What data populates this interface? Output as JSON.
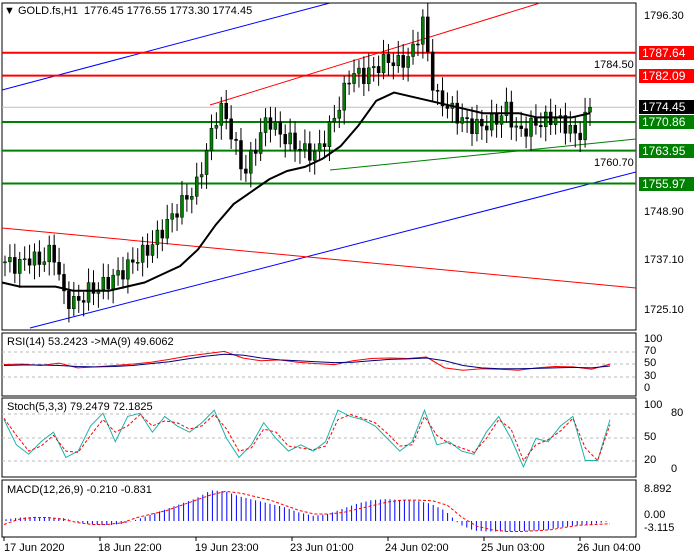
{
  "header": {
    "symbol": "GOLD.fs,H1",
    "ohlc": "1776.45 1776.55 1773.30 1774.45"
  },
  "price_scale": [
    "1796.30",
    "1784.50",
    "1760.70",
    "1748.90",
    "1737.10",
    "1725.10"
  ],
  "levels": [
    {
      "label": "1787.64",
      "price": 1787.64,
      "color": "#ff0000"
    },
    {
      "label": "1782.09",
      "price": 1782.09,
      "color": "#ff0000"
    },
    {
      "label": "1774.45",
      "price": 1774.45,
      "color": "#000000"
    },
    {
      "label": "1770.86",
      "price": 1770.86,
      "color": "#008000"
    },
    {
      "label": "1763.95",
      "price": 1763.95,
      "color": "#008000"
    },
    {
      "label": "1755.97",
      "price": 1755.97,
      "color": "#008000"
    }
  ],
  "chart_data": {
    "type": "candlestick",
    "closes": [
      1737,
      1736,
      1738,
      1737,
      1740,
      1728,
      1727,
      1730,
      1731,
      1733,
      1735,
      1738,
      1740,
      1744,
      1748,
      1752,
      1755,
      1765,
      1775,
      1768,
      1758,
      1765,
      1772,
      1768,
      1766,
      1764,
      1763,
      1768,
      1775,
      1783,
      1782,
      1784,
      1786,
      1785,
      1787,
      1795,
      1777,
      1775,
      1772,
      1770,
      1770,
      1771,
      1774,
      1768,
      1770,
      1771,
      1772,
      1770,
      1767,
      1774.45
    ],
    "ma": [
      1732,
      1731,
      1731,
      1731,
      1730,
      1730,
      1730,
      1731,
      1732,
      1734,
      1736,
      1740,
      1746,
      1751,
      1754,
      1757,
      1759,
      1760,
      1762,
      1765,
      1770,
      1776,
      1778,
      1777,
      1776,
      1775,
      1774,
      1773,
      1773,
      1773,
      1772,
      1772,
      1772,
      1773
    ]
  },
  "rsi": {
    "label": "RSI(14) 53.2423  ->MA(9) 49.6062",
    "scale": [
      "100",
      "70",
      "50",
      "30",
      "0"
    ],
    "values": [
      52,
      53,
      50,
      55,
      45,
      47,
      50,
      53,
      57,
      63,
      70,
      75,
      80,
      66,
      60,
      62,
      57,
      54,
      52,
      60,
      65,
      66,
      65,
      68,
      45,
      40,
      43,
      42,
      40,
      45,
      48,
      47,
      42,
      53
    ],
    "ma": [
      50,
      51,
      51,
      50,
      48,
      47,
      48,
      50,
      54,
      58,
      64,
      70,
      74,
      72,
      66,
      62,
      60,
      58,
      56,
      57,
      60,
      63,
      64,
      66,
      60,
      50,
      45,
      43,
      43,
      44,
      45,
      46,
      45,
      49
    ]
  },
  "stoch": {
    "label": "Stoch(5,3,3) 79.2479 72.1825",
    "scale": [
      "100",
      "80",
      "50",
      "20",
      "0"
    ],
    "main": [
      80,
      40,
      25,
      45,
      60,
      20,
      30,
      70,
      90,
      45,
      85,
      90,
      60,
      85,
      70,
      60,
      75,
      95,
      50,
      20,
      40,
      75,
      50,
      30,
      40,
      30,
      45,
      95,
      85,
      80,
      70,
      50,
      30,
      45,
      95,
      40,
      45,
      30,
      25,
      60,
      85,
      50,
      5,
      50,
      45,
      70,
      85,
      15,
      15,
      80
    ],
    "signal": [
      82,
      55,
      30,
      38,
      55,
      30,
      28,
      55,
      80,
      60,
      70,
      88,
      70,
      78,
      75,
      65,
      70,
      88,
      65,
      30,
      35,
      65,
      60,
      38,
      35,
      32,
      38,
      80,
      88,
      82,
      75,
      58,
      38,
      40,
      85,
      55,
      42,
      35,
      28,
      50,
      80,
      65,
      15,
      40,
      48,
      62,
      82,
      35,
      15,
      72
    ]
  },
  "macd": {
    "label": "MACD(12,26,9) -0.210 -0.831",
    "scale": [
      "8.892",
      "0.00",
      "-3.115"
    ],
    "hist": [
      0.5,
      1,
      1.2,
      1,
      0.8,
      -0.5,
      -1,
      -1.2,
      -0.8,
      0.5,
      2,
      3.5,
      5,
      6.5,
      8.8,
      8.5,
      7,
      6,
      5,
      4,
      2.5,
      1.5,
      2,
      3.5,
      5,
      6,
      6.3,
      6,
      5.8,
      5,
      3,
      -1,
      -2.8,
      -3,
      -3,
      -2.9,
      -2.8,
      -2.5,
      -1.8,
      -1.2,
      -1,
      -0.2
    ],
    "signal": [
      -1,
      0.5,
      1,
      1,
      0.5,
      -0.5,
      -1,
      -1,
      -0.5,
      1,
      2,
      3,
      4.5,
      6,
      7.5,
      8.5,
      8,
      7,
      6,
      4.5,
      3,
      2,
      2,
      2.5,
      3.5,
      4.5,
      5.5,
      6,
      6,
      5.8,
      4.5,
      1,
      -1.5,
      -2.5,
      -3,
      -3,
      -2.8,
      -2.5,
      -1.8,
      -1.2,
      -1,
      -0.8
    ]
  },
  "time_axis": [
    "17 Jun 2020",
    "18 Jun 22:00",
    "19 Jun 23:00",
    "23 Jun 01:00",
    "24 Jun 02:00",
    "25 Jun 03:00",
    "26 Jun 04:00"
  ],
  "colors": {
    "bull": "#008000",
    "bear": "#000000",
    "rsi": "#ff0000",
    "rsi_ma": "#000080",
    "stoch": "#20b2aa",
    "macd_hist": "#0000ff"
  }
}
